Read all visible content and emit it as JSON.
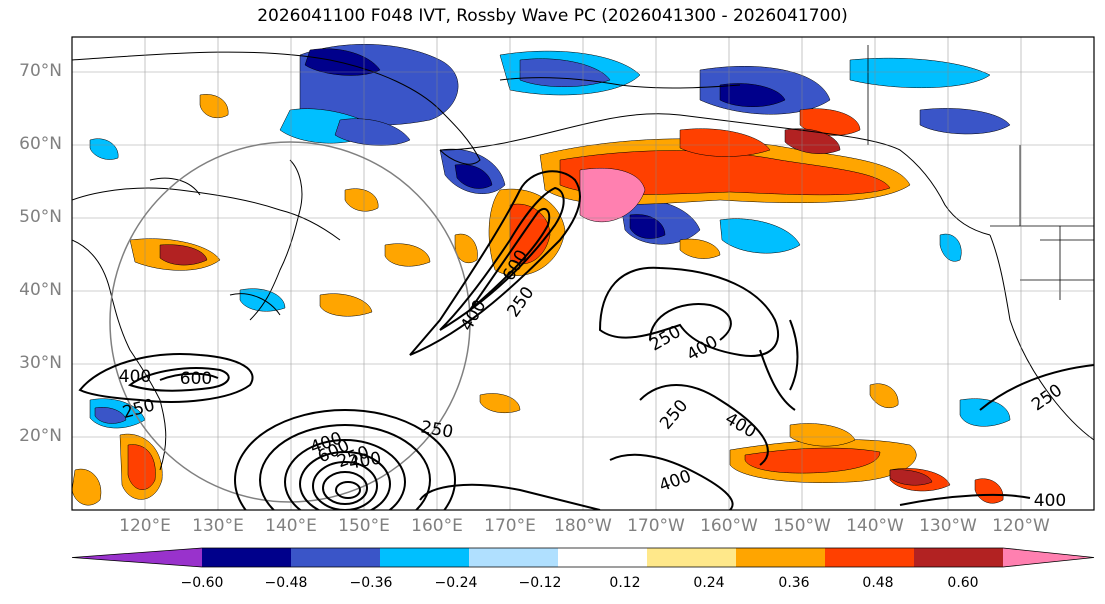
{
  "title": "2026041100 F048 IVT, Rossby Wave PC (2026041300 - 2026041700)",
  "lat_labels": [
    "70°N",
    "60°N",
    "50°N",
    "40°N",
    "30°N",
    "20°N"
  ],
  "lon_labels": [
    "120°E",
    "130°E",
    "140°E",
    "150°E",
    "160°E",
    "170°E",
    "180°W",
    "170°W",
    "160°W",
    "150°W",
    "140°W",
    "130°W",
    "120°W"
  ],
  "contour_labels": [
    "400",
    "600",
    "250",
    "600",
    "400",
    "250",
    "250",
    "400",
    "250",
    "400",
    "400",
    "250",
    "400",
    "250",
    "400",
    "600",
    "250",
    "400"
  ],
  "colorbar": {
    "ticks": [
      "−0.60",
      "−0.48",
      "−0.36",
      "−0.24",
      "−0.12",
      "0.12",
      "0.24",
      "0.36",
      "0.48",
      "0.60"
    ],
    "colors": [
      "#9932cc",
      "#00008b",
      "#3a55c8",
      "#00bfff",
      "#b0e0ff",
      "#ffffff",
      "#ffe88a",
      "#ffa500",
      "#ff4000",
      "#b22222",
      "#ff80b0"
    ]
  }
}
